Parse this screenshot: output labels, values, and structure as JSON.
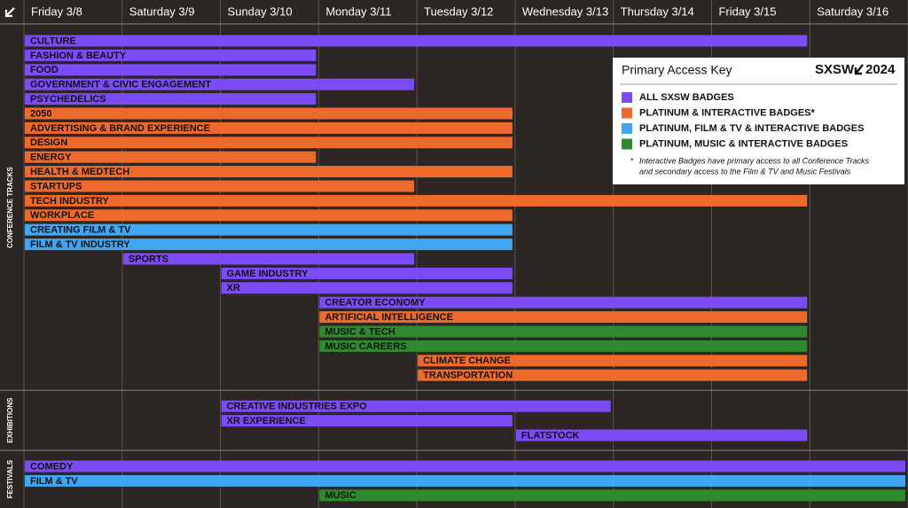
{
  "chart_data": {
    "type": "gantt",
    "categories": [
      "Friday 3/8",
      "Saturday 3/9",
      "Sunday 3/10",
      "Monday 3/11",
      "Tuesday 3/12",
      "Wednesday 3/13",
      "Thursday 3/14",
      "Friday 3/15",
      "Saturday 3/16"
    ],
    "xlim": [
      0,
      9
    ],
    "sections": [
      {
        "name": "CONFERENCE TRACKS",
        "tasks": [
          {
            "name": "CULTURE",
            "start": 0,
            "end": 8,
            "color": "#7b4cf5"
          },
          {
            "name": "FASHION & BEAUTY",
            "start": 0,
            "end": 3,
            "color": "#7b4cf5"
          },
          {
            "name": "FOOD",
            "start": 0,
            "end": 3,
            "color": "#7b4cf5"
          },
          {
            "name": "GOVERNMENT & CIVIC ENGAGEMENT",
            "start": 0,
            "end": 4,
            "color": "#7b4cf5"
          },
          {
            "name": "PSYCHEDELICS",
            "start": 0,
            "end": 3,
            "color": "#7b4cf5"
          },
          {
            "name": "2050",
            "start": 0,
            "end": 5,
            "color": "#ee6a2c"
          },
          {
            "name": "ADVERTISING & BRAND EXPERIENCE",
            "start": 0,
            "end": 5,
            "color": "#ee6a2c"
          },
          {
            "name": "DESIGN",
            "start": 0,
            "end": 5,
            "color": "#ee6a2c"
          },
          {
            "name": "ENERGY",
            "start": 0,
            "end": 3,
            "color": "#ee6a2c"
          },
          {
            "name": "HEALTH & MEDTECH",
            "start": 0,
            "end": 5,
            "color": "#ee6a2c"
          },
          {
            "name": "STARTUPS",
            "start": 0,
            "end": 4,
            "color": "#ee6a2c"
          },
          {
            "name": "TECH INDUSTRY",
            "start": 0,
            "end": 8,
            "color": "#ee6a2c"
          },
          {
            "name": "WORKPLACE",
            "start": 0,
            "end": 5,
            "color": "#ee6a2c"
          },
          {
            "name": "CREATING FILM & TV",
            "start": 0,
            "end": 5,
            "color": "#3fa6ef"
          },
          {
            "name": "FILM & TV INDUSTRY",
            "start": 0,
            "end": 5,
            "color": "#3fa6ef"
          },
          {
            "name": "SPORTS",
            "start": 1,
            "end": 4,
            "color": "#7b4cf5"
          },
          {
            "name": "GAME INDUSTRY",
            "start": 2,
            "end": 5,
            "color": "#7b4cf5"
          },
          {
            "name": "XR",
            "start": 2,
            "end": 5,
            "color": "#7b4cf5"
          },
          {
            "name": "CREATOR ECONOMY",
            "start": 3,
            "end": 8,
            "color": "#7b4cf5"
          },
          {
            "name": "ARTIFICIAL INTELLIGENCE",
            "start": 3,
            "end": 8,
            "color": "#ee6a2c"
          },
          {
            "name": "MUSIC & TECH",
            "start": 3,
            "end": 8,
            "color": "#2f8a2f"
          },
          {
            "name": "MUSIC CAREERS",
            "start": 3,
            "end": 8,
            "color": "#2f8a2f"
          },
          {
            "name": "CLIMATE CHANGE",
            "start": 4,
            "end": 8,
            "color": "#ee6a2c"
          },
          {
            "name": "TRANSPORTATION",
            "start": 4,
            "end": 8,
            "color": "#ee6a2c"
          }
        ]
      },
      {
        "name": "EXHIBITIONS",
        "tasks": [
          {
            "name": "CREATIVE INDUSTRIES EXPO",
            "start": 2,
            "end": 6,
            "color": "#7b4cf5"
          },
          {
            "name": "XR EXPERIENCE",
            "start": 2,
            "end": 5,
            "color": "#7b4cf5"
          },
          {
            "name": "FLATSTOCK",
            "start": 5,
            "end": 8,
            "color": "#7b4cf5"
          }
        ]
      },
      {
        "name": "FESTIVALS",
        "tasks": [
          {
            "name": "COMEDY",
            "start": 0,
            "end": 9,
            "color": "#7b4cf5"
          },
          {
            "name": "FILM & TV",
            "start": 0,
            "end": 9,
            "color": "#3fa6ef"
          },
          {
            "name": "MUSIC",
            "start": 3,
            "end": 9,
            "color": "#2f8a2f"
          }
        ]
      }
    ],
    "legend": {
      "title": "Primary Access Key",
      "logo": [
        "SXSW",
        "2024"
      ],
      "items": [
        {
          "name": "ALL SXSW BADGES",
          "color": "#7b4cf5"
        },
        {
          "name": "PLATINUM & INTERACTIVE BADGES*",
          "color": "#ee6a2c"
        },
        {
          "name": "PLATINUM, FILM & TV & INTERACTIVE BADGES",
          "color": "#3fa6ef"
        },
        {
          "name": "PLATINUM, MUSIC & INTERACTIVE BADGES",
          "color": "#2f8a2f"
        }
      ],
      "note_mark": "*",
      "note": [
        "Interactive Badges have primary access to all Conference Tracks",
        "and secondary access to the Film & TV and Music Festivals"
      ]
    }
  }
}
